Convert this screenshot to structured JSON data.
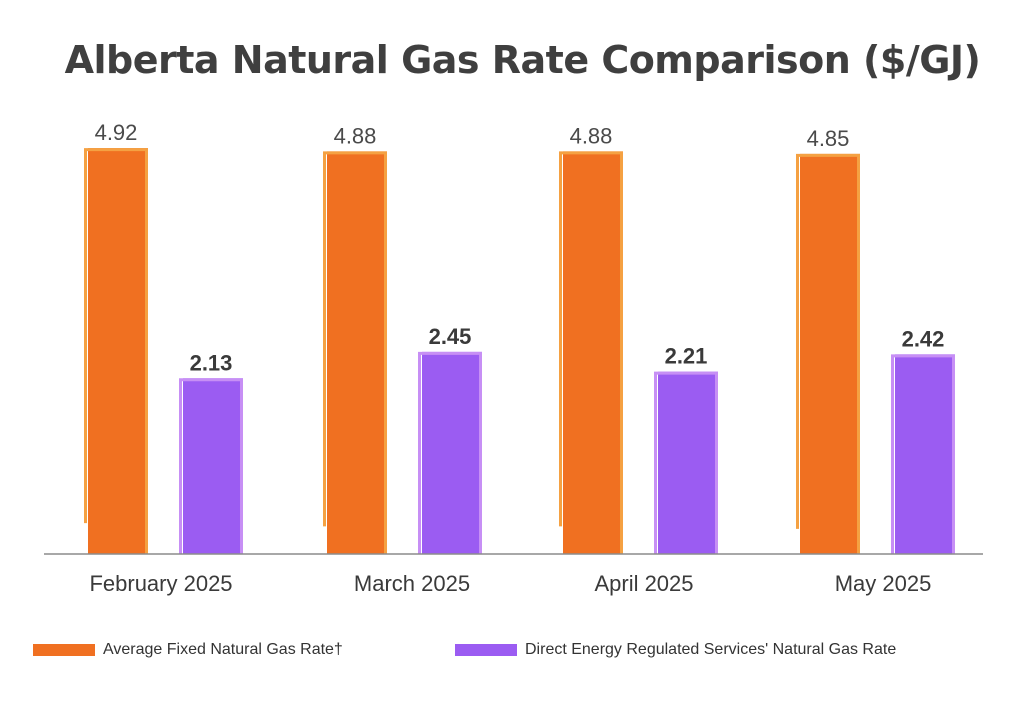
{
  "chart_data": {
    "type": "bar",
    "title": "Alberta Natural Gas Rate Comparison ($/GJ)",
    "xlabel": "",
    "ylabel": "",
    "ylim": [
      0,
      5.5
    ],
    "categories": [
      "February 2025",
      "March 2025",
      "April 2025",
      "May 2025"
    ],
    "series": [
      {
        "name": "Average Fixed Natural Gas Rate†",
        "values": [
          4.92,
          4.88,
          4.88,
          4.85
        ],
        "labels": [
          "4.92",
          "4.88",
          "4.88",
          "4.85"
        ],
        "color": "#f07021",
        "edge_color": "#f5a142"
      },
      {
        "name": "Direct Energy Regulated Services' Natural Gas Rate",
        "values": [
          2.13,
          2.45,
          2.21,
          2.42
        ],
        "labels": [
          "2.13",
          "2.45",
          "2.21",
          "2.42"
        ],
        "color": "#9b5cf2",
        "edge_color": "#c78ff5"
      }
    ]
  }
}
